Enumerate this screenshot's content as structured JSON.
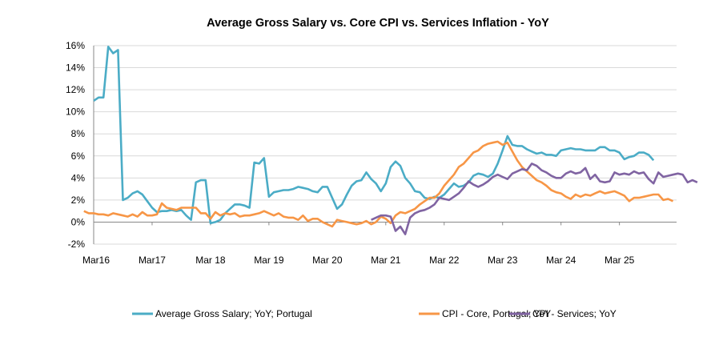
{
  "chart_data": {
    "type": "line",
    "title": "Average Gross Salary vs. Core CPI vs. Services  Inflation - YoY",
    "xlabel": "",
    "ylabel": "",
    "ylim": [
      -2,
      16
    ],
    "yticks": [
      -2,
      0,
      2,
      4,
      6,
      8,
      10,
      12,
      14,
      16
    ],
    "ytick_labels": [
      "-2%",
      "0%",
      "2%",
      "4%",
      "6%",
      "8%",
      "10%",
      "12%",
      "14%",
      "16%"
    ],
    "xtick_labels": [
      "Mar16",
      "Mar17",
      "Mar 18",
      "Mar 19",
      "Mar 20",
      "Mar 21",
      "Mar 22",
      "Mar 23",
      "Mar 24",
      "Mar 25"
    ],
    "x_start": "2016-03",
    "frequency": "monthly",
    "grid": true,
    "legend_position": "bottom",
    "series": [
      {
        "name": "Average Gross Salary; YoY; Portugal",
        "color": "#4BACC6",
        "values": [
          11.0,
          11.3,
          11.3,
          15.9,
          15.3,
          15.6,
          2.0,
          2.2,
          2.6,
          2.8,
          2.5,
          1.9,
          1.3,
          0.9,
          1.0,
          1.0,
          1.1,
          1.0,
          1.1,
          0.6,
          0.2,
          3.6,
          3.8,
          3.8,
          -0.1,
          0.0,
          0.2,
          0.8,
          1.2,
          1.6,
          1.6,
          1.5,
          1.3,
          5.4,
          5.3,
          5.8,
          2.3,
          2.7,
          2.8,
          2.9,
          2.9,
          3.0,
          3.2,
          3.1,
          3.0,
          2.8,
          2.7,
          3.2,
          3.2,
          2.2,
          1.2,
          1.6,
          2.5,
          3.3,
          3.7,
          3.8,
          4.5,
          3.9,
          3.5,
          2.8,
          3.5,
          5.0,
          5.5,
          5.1,
          4.0,
          3.5,
          2.8,
          2.7,
          2.2,
          2.1,
          2.3,
          2.2,
          2.5,
          3.0,
          3.5,
          3.2,
          3.3,
          3.6,
          4.2,
          4.4,
          4.3,
          4.1,
          4.4,
          5.3,
          6.5,
          7.8,
          7.0,
          6.9,
          6.9,
          6.6,
          6.4,
          6.2,
          6.3,
          6.1,
          6.1,
          6.0,
          6.5,
          6.6,
          6.7,
          6.6,
          6.6,
          6.5,
          6.5,
          6.5,
          6.8,
          6.8,
          6.5,
          6.5,
          6.3,
          5.7,
          5.9,
          6.0,
          6.3,
          6.3,
          6.1,
          5.6
        ],
        "x_offset_months": 0
      },
      {
        "name": "CPI - Core, Portugal; YoY",
        "color": "#F79646",
        "values": [
          1.0,
          0.8,
          0.8,
          0.7,
          0.7,
          0.6,
          0.8,
          0.7,
          0.6,
          0.5,
          0.7,
          0.5,
          0.9,
          0.6,
          0.6,
          0.7,
          1.7,
          1.3,
          1.2,
          1.1,
          1.3,
          1.3,
          1.3,
          1.3,
          0.8,
          0.8,
          0.3,
          0.9,
          0.6,
          0.8,
          0.7,
          0.8,
          0.5,
          0.6,
          0.6,
          0.7,
          0.8,
          1.0,
          0.8,
          0.6,
          0.8,
          0.5,
          0.4,
          0.4,
          0.2,
          0.6,
          0.1,
          0.3,
          0.3,
          0.0,
          -0.2,
          -0.4,
          0.2,
          0.1,
          0.0,
          -0.1,
          -0.2,
          -0.1,
          0.1,
          -0.2,
          0.0,
          0.5,
          0.3,
          -0.1,
          0.6,
          0.9,
          0.8,
          1.0,
          1.2,
          1.6,
          1.9,
          2.2,
          2.2,
          2.6,
          3.3,
          3.8,
          4.3,
          5.0,
          5.3,
          5.8,
          6.3,
          6.5,
          6.9,
          7.1,
          7.2,
          7.3,
          7.0,
          7.2,
          6.4,
          5.6,
          5.0,
          4.6,
          4.2,
          3.8,
          3.6,
          3.3,
          2.9,
          2.7,
          2.6,
          2.3,
          2.1,
          2.5,
          2.3,
          2.5,
          2.4,
          2.6,
          2.8,
          2.6,
          2.7,
          2.8,
          2.6,
          2.4,
          1.9,
          2.2,
          2.2,
          2.3,
          2.4,
          2.5,
          2.5,
          2.0,
          2.1,
          1.9
        ],
        "x_offset_months": -2
      },
      {
        "name": "CPI - Services; YoY",
        "color": "#8064A2",
        "values": [
          0.2,
          0.4,
          0.6,
          0.6,
          0.5,
          -0.8,
          -0.4,
          -1.1,
          0.4,
          0.8,
          1.0,
          1.1,
          1.3,
          1.6,
          2.2,
          2.1,
          2.0,
          2.3,
          2.6,
          3.1,
          3.7,
          3.4,
          3.2,
          3.4,
          3.7,
          4.1,
          4.3,
          4.1,
          3.9,
          4.4,
          4.6,
          4.8,
          4.7,
          5.3,
          5.1,
          4.7,
          4.5,
          4.2,
          4.0,
          4.0,
          4.4,
          4.6,
          4.4,
          4.5,
          4.9,
          3.9,
          4.3,
          3.7,
          3.6,
          3.7,
          4.5,
          4.3,
          4.4,
          4.3,
          4.6,
          4.4,
          4.5,
          3.9,
          3.5,
          4.5,
          4.1,
          4.2,
          4.3,
          4.4,
          4.3,
          3.6,
          3.8,
          3.6
        ],
        "x_offset_months": 57
      }
    ]
  }
}
